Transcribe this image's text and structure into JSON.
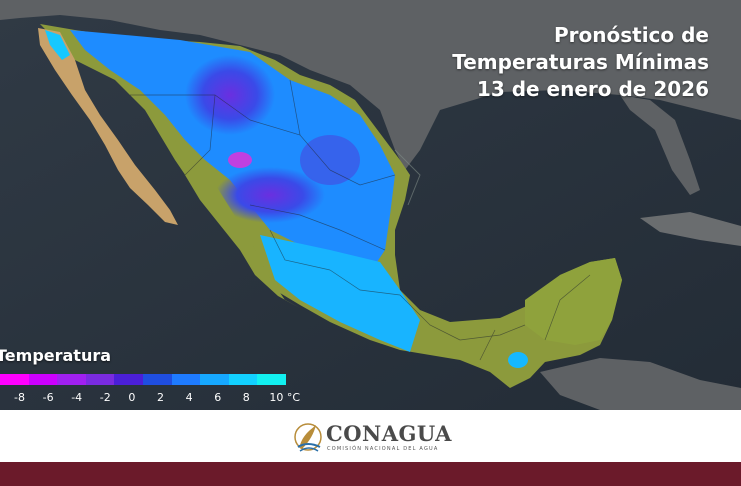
{
  "title": {
    "line1": "Pronóstico de",
    "line2": "Temperaturas Mínimas",
    "line3": "13 de enero de 2026"
  },
  "legend": {
    "title": "Temperatura",
    "ticks": [
      "-8",
      "-6",
      "-4",
      "-2",
      "0",
      "2",
      "4",
      "6",
      "8",
      "10 °C"
    ],
    "colors": [
      "#ff00ff",
      "#cc00ff",
      "#a020f0",
      "#7a2be0",
      "#4b1fd8",
      "#1f4ee0",
      "#1e7bff",
      "#16a8ff",
      "#12d0ff",
      "#12f0f0"
    ]
  },
  "logo": {
    "name": "CONAGUA",
    "subtitle": "COMISIÓN NACIONAL DEL AGUA"
  },
  "colors": {
    "ocean": "#2b3540",
    "land_bg": "#5b5f63",
    "mexico_warm": "#8c9a3c",
    "brand_band": "#6b1a2a"
  }
}
